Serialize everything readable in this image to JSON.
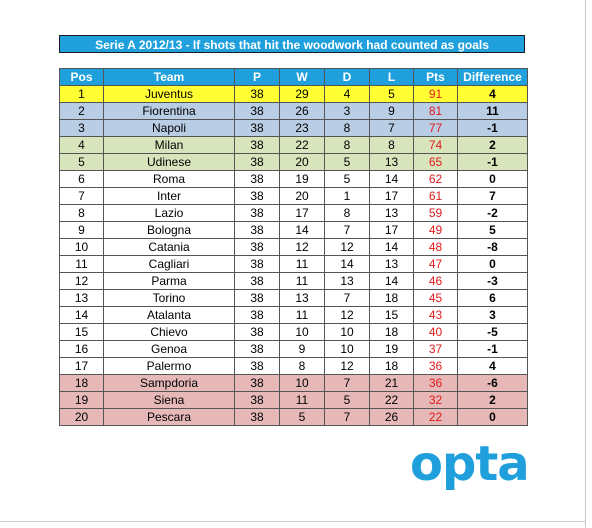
{
  "title": "Serie A 2012/13 - If shots that hit the woodwork had counted as goals",
  "logo_text": "opta",
  "colors": {
    "header": "#1fa0dc",
    "champion": "#ffff33",
    "champions_league": "#b9cde5",
    "europa_league": "#d7e4bc",
    "relegation": "#e6b9b8",
    "points": "#e11b1b",
    "logo": "#1fa0dc"
  },
  "chart_data": {
    "type": "table",
    "columns": [
      "Pos",
      "Team",
      "P",
      "W",
      "D",
      "L",
      "Pts",
      "Difference"
    ],
    "rows": [
      {
        "pos": "1",
        "team": "Juventus",
        "p": "38",
        "w": "29",
        "d": "4",
        "l": "5",
        "pts": "91",
        "diff": "4",
        "zone": "champion"
      },
      {
        "pos": "2",
        "team": "Fiorentina",
        "p": "38",
        "w": "26",
        "d": "3",
        "l": "9",
        "pts": "81",
        "diff": "11",
        "zone": "champions_league"
      },
      {
        "pos": "3",
        "team": "Napoli",
        "p": "38",
        "w": "23",
        "d": "8",
        "l": "7",
        "pts": "77",
        "diff": "-1",
        "zone": "champions_league"
      },
      {
        "pos": "4",
        "team": "Milan",
        "p": "38",
        "w": "22",
        "d": "8",
        "l": "8",
        "pts": "74",
        "diff": "2",
        "zone": "europa_league"
      },
      {
        "pos": "5",
        "team": "Udinese",
        "p": "38",
        "w": "20",
        "d": "5",
        "l": "13",
        "pts": "65",
        "diff": "-1",
        "zone": "europa_league"
      },
      {
        "pos": "6",
        "team": "Roma",
        "p": "38",
        "w": "19",
        "d": "5",
        "l": "14",
        "pts": "62",
        "diff": "0",
        "zone": ""
      },
      {
        "pos": "7",
        "team": "Inter",
        "p": "38",
        "w": "20",
        "d": "1",
        "l": "17",
        "pts": "61",
        "diff": "7",
        "zone": ""
      },
      {
        "pos": "8",
        "team": "Lazio",
        "p": "38",
        "w": "17",
        "d": "8",
        "l": "13",
        "pts": "59",
        "diff": "-2",
        "zone": ""
      },
      {
        "pos": "9",
        "team": "Bologna",
        "p": "38",
        "w": "14",
        "d": "7",
        "l": "17",
        "pts": "49",
        "diff": "5",
        "zone": ""
      },
      {
        "pos": "10",
        "team": "Catania",
        "p": "38",
        "w": "12",
        "d": "12",
        "l": "14",
        "pts": "48",
        "diff": "-8",
        "zone": ""
      },
      {
        "pos": "11",
        "team": "Cagliari",
        "p": "38",
        "w": "11",
        "d": "14",
        "l": "13",
        "pts": "47",
        "diff": "0",
        "zone": ""
      },
      {
        "pos": "12",
        "team": "Parma",
        "p": "38",
        "w": "11",
        "d": "13",
        "l": "14",
        "pts": "46",
        "diff": "-3",
        "zone": ""
      },
      {
        "pos": "13",
        "team": "Torino",
        "p": "38",
        "w": "13",
        "d": "7",
        "l": "18",
        "pts": "45",
        "diff": "6",
        "zone": ""
      },
      {
        "pos": "14",
        "team": "Atalanta",
        "p": "38",
        "w": "11",
        "d": "12",
        "l": "15",
        "pts": "43",
        "diff": "3",
        "zone": ""
      },
      {
        "pos": "15",
        "team": "Chievo",
        "p": "38",
        "w": "10",
        "d": "10",
        "l": "18",
        "pts": "40",
        "diff": "-5",
        "zone": ""
      },
      {
        "pos": "16",
        "team": "Genoa",
        "p": "38",
        "w": "9",
        "d": "10",
        "l": "19",
        "pts": "37",
        "diff": "-1",
        "zone": ""
      },
      {
        "pos": "17",
        "team": "Palermo",
        "p": "38",
        "w": "8",
        "d": "12",
        "l": "18",
        "pts": "36",
        "diff": "4",
        "zone": ""
      },
      {
        "pos": "18",
        "team": "Sampdoria",
        "p": "38",
        "w": "10",
        "d": "7",
        "l": "21",
        "pts": "36",
        "diff": "-6",
        "zone": "relegation"
      },
      {
        "pos": "19",
        "team": "Siena",
        "p": "38",
        "w": "11",
        "d": "5",
        "l": "22",
        "pts": "32",
        "diff": "2",
        "zone": "relegation"
      },
      {
        "pos": "20",
        "team": "Pescara",
        "p": "38",
        "w": "5",
        "d": "7",
        "l": "26",
        "pts": "22",
        "diff": "0",
        "zone": "relegation"
      }
    ]
  }
}
